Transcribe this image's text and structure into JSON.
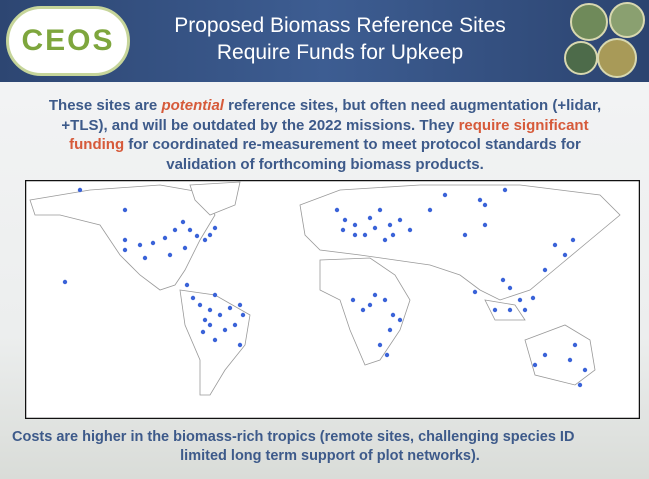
{
  "header": {
    "logo": "CEOS",
    "title_lines": [
      "Proposed Biomass Reference Sites",
      "Require Funds for Upkeep"
    ]
  },
  "body": {
    "segments": [
      {
        "text": "These sites are ",
        "style": "normal"
      },
      {
        "text": "potential",
        "style": "highlight-italic"
      },
      {
        "text": " reference sites, but often need augmentation (+lidar, +TLS), and will be outdated by the 2022 missions. They ",
        "style": "normal"
      },
      {
        "text": "require significant funding",
        "style": "highlight"
      },
      {
        "text": " for coordinated re-measurement to meet protocol standards for validation of forthcoming biomass products.",
        "style": "normal"
      }
    ]
  },
  "footer": {
    "lines": [
      "Costs are higher in the biomass-rich tropics (remote sites, challenging species ID",
      "limited long term support of plot networks)."
    ]
  }
}
